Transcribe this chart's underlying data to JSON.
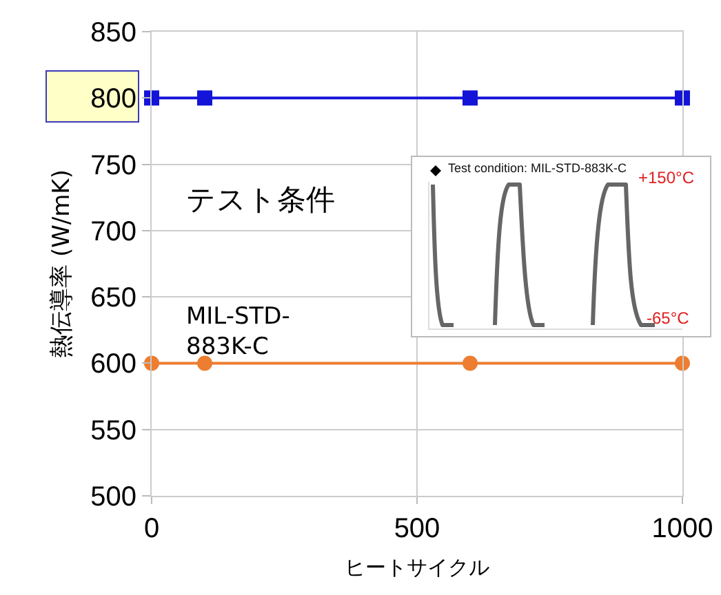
{
  "chart_data": {
    "type": "line",
    "xlabel": "ヒートサイクル",
    "ylabel": "熱伝導率 (W/mK)",
    "x": [
      0,
      100,
      600,
      1000
    ],
    "series": [
      {
        "color": "#1414d8",
        "values": [
          800,
          800,
          800,
          800
        ],
        "marker": "square"
      },
      {
        "color": "#ed7d31",
        "values": [
          600,
          600,
          600,
          600
        ],
        "marker": "circle"
      }
    ],
    "xlim": [
      0,
      1000
    ],
    "xticks": [
      0,
      500,
      1000
    ],
    "ylim": [
      500,
      850
    ],
    "yticks": [
      500,
      550,
      600,
      650,
      700,
      750,
      800,
      850
    ],
    "grid": true,
    "line_style": "solid",
    "annotations": [
      "テスト条件",
      "MIL-STD-\n883K-C",
      "Test condition: MIL-STD-883K-C",
      "+150°C",
      "-65°C"
    ]
  }
}
